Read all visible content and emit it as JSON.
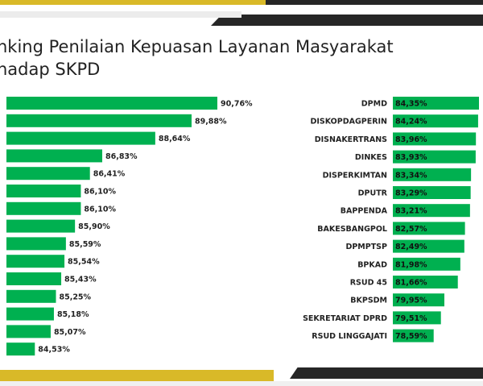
{
  "title_line1": "nking Penilaian Kepuasan Layanan Masyarakat",
  "title_line2": "hadap SKPD",
  "colors": {
    "bar": "#00b050",
    "band_dark": "#262626",
    "band_gold": "#d9b928",
    "band_light": "#ececec"
  },
  "chart_data": [
    {
      "type": "bar",
      "orientation": "horizontal",
      "categories": [],
      "values": [
        90.76,
        89.88,
        88.64,
        86.83,
        86.41,
        86.1,
        86.1,
        85.9,
        85.59,
        85.54,
        85.43,
        85.25,
        85.18,
        85.07,
        84.53
      ],
      "labels": [
        "90,76%",
        "89,88%",
        "88,64%",
        "86,83%",
        "86,41%",
        "86,10%",
        "86,10%",
        "85,90%",
        "85,59%",
        "85,54%",
        "85,43%",
        "85,25%",
        "85,18%",
        "85,07%",
        "84,53%"
      ]
    },
    {
      "type": "bar",
      "orientation": "horizontal",
      "categories": [
        "DPMD",
        "DISKOPDAGPERIN",
        "DISNAKERTRANS",
        "DINKES",
        "DISPERKIMTAN",
        "DPUTR",
        "BAPPENDA",
        "BAKESBANGPOL",
        "DPMPTSP",
        "BPKAD",
        "RSUD 45",
        "BKPSDM",
        "SEKRETARIAT DPRD",
        "RSUD LINGGAJATI"
      ],
      "values": [
        84.35,
        84.24,
        83.96,
        83.93,
        83.34,
        83.29,
        83.21,
        82.57,
        82.49,
        81.98,
        81.66,
        79.95,
        79.51,
        78.59
      ],
      "labels": [
        "84,35%",
        "84,24%",
        "83,96%",
        "83,93%",
        "83,34%",
        "83,29%",
        "83,21%",
        "82,57%",
        "82,49%",
        "81,98%",
        "81,66%",
        "79,95%",
        "79,51%",
        "78,59%"
      ]
    }
  ]
}
